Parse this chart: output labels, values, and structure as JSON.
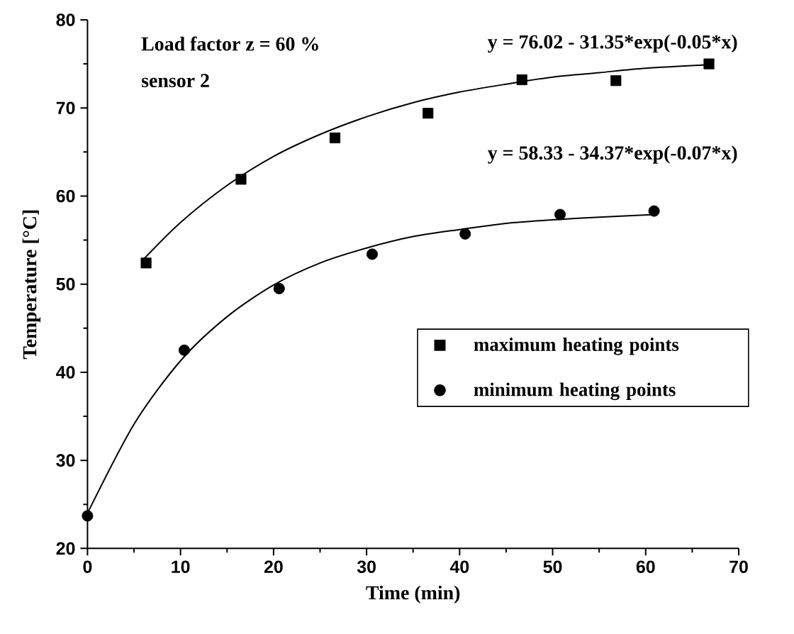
{
  "chart_data": {
    "type": "scatter",
    "xlabel": "Time (min)",
    "ylabel": "Temperature [°C]",
    "xlim": [
      0,
      70
    ],
    "ylim": [
      20,
      80
    ],
    "xticks": [
      0,
      10,
      20,
      30,
      40,
      50,
      60,
      70
    ],
    "yticks": [
      20,
      30,
      40,
      50,
      60,
      70,
      80
    ],
    "grid": false,
    "legend": "right",
    "annotations": [
      "Load factor z = 60 %",
      "sensor 2",
      "y = 76.02 - 31.35*exp(-0.05*x)",
      "y = 58.33 - 34.37*exp(-0.07*x)"
    ],
    "series": [
      {
        "name": "maximum heating points",
        "marker": "square",
        "color": "#000000",
        "x": [
          6.3,
          16.5,
          26.6,
          36.6,
          46.7,
          56.8,
          66.8
        ],
        "values": [
          52.4,
          61.9,
          66.6,
          69.4,
          73.2,
          73.1,
          75.0
        ]
      },
      {
        "name": "minimum heating points",
        "marker": "circle",
        "color": "#000000",
        "x": [
          0,
          10.4,
          20.6,
          30.6,
          40.6,
          50.8,
          60.9
        ],
        "values": [
          23.7,
          42.5,
          49.5,
          53.4,
          55.7,
          57.9,
          58.3
        ]
      },
      {
        "type": "line",
        "marker": "none",
        "color": "#000000",
        "x": [
          6,
          10,
          15,
          20,
          25,
          30,
          35,
          40,
          45,
          50,
          55,
          60,
          67
        ],
        "values": [
          52.8,
          57.0,
          61.2,
          64.5,
          67.0,
          69.0,
          70.6,
          71.8,
          72.7,
          73.5,
          74.0,
          74.5,
          74.9
        ]
      },
      {
        "type": "line",
        "marker": "none",
        "color": "#000000",
        "x": [
          0,
          5,
          10,
          15,
          20,
          25,
          30,
          35,
          40,
          45,
          50,
          55,
          61
        ],
        "values": [
          24.0,
          34.1,
          41.3,
          46.3,
          49.9,
          52.4,
          54.1,
          55.4,
          56.2,
          56.9,
          57.3,
          57.6,
          57.9
        ]
      }
    ]
  }
}
